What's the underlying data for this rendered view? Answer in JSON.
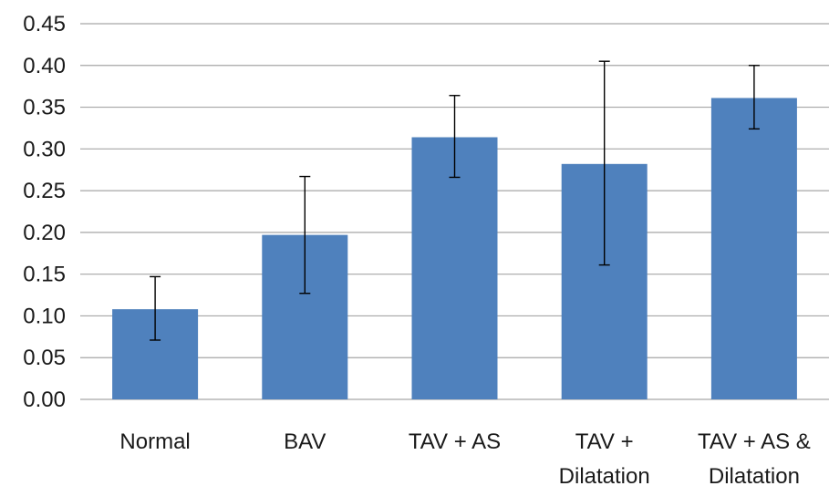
{
  "chart_data": {
    "type": "bar",
    "title": "",
    "xlabel": "",
    "ylabel": "",
    "ylim": [
      0,
      0.45
    ],
    "y_ticks": [
      "0.00",
      "0.05",
      "0.10",
      "0.15",
      "0.20",
      "0.25",
      "0.30",
      "0.35",
      "0.40",
      "0.45"
    ],
    "grid": true,
    "bar_color": "#4f81bd",
    "gridline_color": "#a6a6a6",
    "categories": [
      [
        "Normal"
      ],
      [
        "BAV"
      ],
      [
        "TAV + AS"
      ],
      [
        "TAV +",
        "Dilatation"
      ],
      [
        "TAV + AS &",
        "Dilatation"
      ]
    ],
    "values": [
      0.108,
      0.197,
      0.314,
      0.282,
      0.361
    ],
    "error_bars": [
      {
        "low": 0.071,
        "high": 0.147
      },
      {
        "low": 0.127,
        "high": 0.267
      },
      {
        "low": 0.266,
        "high": 0.364
      },
      {
        "low": 0.161,
        "high": 0.405
      },
      {
        "low": 0.324,
        "high": 0.4
      }
    ]
  }
}
